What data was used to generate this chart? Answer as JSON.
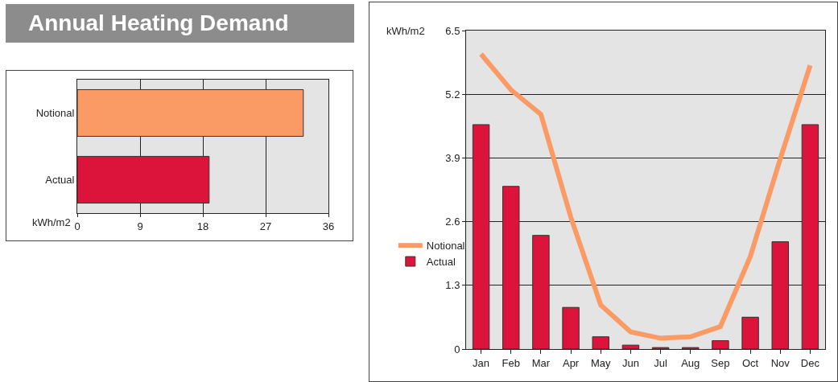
{
  "chart_data": [
    {
      "type": "bar",
      "title": "Annual Heating Demand",
      "orientation": "horizontal",
      "categories": [
        "Notional",
        "Actual"
      ],
      "values": [
        32.4,
        18.9
      ],
      "colors": [
        "#fa9a64",
        "#dc143c"
      ],
      "xlim": [
        0,
        36
      ],
      "xticks": [
        0,
        9,
        18,
        27,
        36
      ],
      "xlabel": "kWh/m2",
      "grid": "x",
      "legend": false
    },
    {
      "type": "bar",
      "ylabel": "kWh/m2",
      "categories": [
        "Jan",
        "Feb",
        "Mar",
        "Apr",
        "May",
        "Jun",
        "Jul",
        "Aug",
        "Sep",
        "Oct",
        "Nov",
        "Dec"
      ],
      "series": [
        {
          "name": "Notional",
          "type": "line",
          "color": "#fa9a64",
          "values": [
            6.02,
            5.29,
            4.79,
            2.69,
            0.9,
            0.35,
            0.22,
            0.25,
            0.46,
            1.89,
            3.88,
            5.79
          ]
        },
        {
          "name": "Actual",
          "type": "bar",
          "color": "#dc143c",
          "values": [
            4.58,
            3.32,
            2.32,
            0.85,
            0.25,
            0.08,
            0.03,
            0.03,
            0.17,
            0.65,
            2.19,
            4.58
          ]
        }
      ],
      "ylim": [
        0,
        6.5
      ],
      "yticks": [
        0,
        1.3,
        2.6,
        3.9,
        5.2,
        6.5
      ],
      "grid": "y",
      "legend": "left"
    }
  ]
}
